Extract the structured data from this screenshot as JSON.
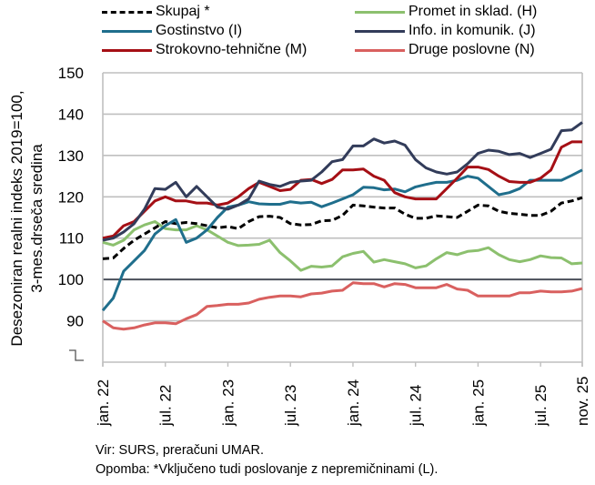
{
  "chart_data": {
    "type": "line",
    "title": "",
    "xlabel": "",
    "ylabel": "Desezoniran realni indeks 2019=100, 3-mes.drseča sredina",
    "ylabel_lines": [
      "Desezoniran realni indeks 2019=100,",
      "3-mes.drseča sredina"
    ],
    "ylim": [
      80,
      150
    ],
    "yticks": [
      90,
      100,
      110,
      120,
      130,
      140,
      150
    ],
    "xtick_labels": [
      "jan. 22",
      "jul. 22",
      "jan. 23",
      "jul. 23",
      "jan. 24",
      "jul. 24",
      "jan. 25",
      "jul. 25",
      "nov. 25"
    ],
    "xtick_index": [
      0,
      6,
      12,
      18,
      24,
      30,
      36,
      42,
      46
    ],
    "x_start": "jan. 22",
    "x_end": "nov. 25",
    "n_points": 47,
    "grid": true,
    "reference_line": 100,
    "axis_break": true,
    "legend_position": "top",
    "series": [
      {
        "name": "Skupaj *",
        "color": "#000000",
        "dash": true,
        "values": [
          105.0,
          105.2,
          107.5,
          109.5,
          111.0,
          112.5,
          114.0,
          113.5,
          113.8,
          113.5,
          113.0,
          112.5,
          112.8,
          112.3,
          114.0,
          115.2,
          115.3,
          115.0,
          113.5,
          113.2,
          113.3,
          114.2,
          114.3,
          115.5,
          118.0,
          117.8,
          117.5,
          117.3,
          117.3,
          115.8,
          114.8,
          114.8,
          115.4,
          115.2,
          115.0,
          116.5,
          118.0,
          117.8,
          116.5,
          116.0,
          115.8,
          115.5,
          115.5,
          116.5,
          118.5,
          119.0,
          119.8
        ]
      },
      {
        "name": "Gostinstvo (I)",
        "color": "#1f6e8c",
        "dash": false,
        "values": [
          92.5,
          95.5,
          102.0,
          104.5,
          107.0,
          111.0,
          113.0,
          114.5,
          109.0,
          110.0,
          112.0,
          115.0,
          117.5,
          118.0,
          118.8,
          118.3,
          118.2,
          118.2,
          118.8,
          118.5,
          118.7,
          117.6,
          118.5,
          119.5,
          120.5,
          122.3,
          122.2,
          121.7,
          121.9,
          121.2,
          122.4,
          123.0,
          123.5,
          123.5,
          124.0,
          125.0,
          124.5,
          122.5,
          120.5,
          121.0,
          122.0,
          124.0,
          124.0,
          124.0,
          124.0,
          125.2,
          126.5
        ]
      },
      {
        "name": "Strokovno-tehnične (M)",
        "color": "#a50f15",
        "dash": false,
        "values": [
          110.0,
          110.5,
          113.0,
          114.0,
          116.5,
          119.0,
          120.0,
          119.0,
          119.0,
          118.5,
          118.5,
          118.0,
          118.5,
          120.0,
          122.0,
          123.5,
          122.5,
          121.5,
          121.8,
          124.0,
          124.2,
          123.2,
          124.2,
          126.5,
          126.5,
          126.7,
          125.0,
          124.0,
          121.0,
          120.0,
          119.5,
          119.5,
          119.5,
          122.0,
          124.5,
          127.2,
          127.2,
          126.6,
          125.0,
          123.7,
          123.5,
          123.5,
          124.5,
          126.5,
          132.0,
          133.3,
          133.3
        ]
      },
      {
        "name": "Promet in sklad. (H)",
        "color": "#8cc06e",
        "dash": false,
        "values": [
          109.0,
          108.3,
          109.5,
          112.0,
          113.2,
          114.0,
          112.3,
          112.0,
          112.0,
          113.0,
          112.0,
          110.5,
          109.0,
          108.2,
          108.3,
          108.5,
          109.5,
          106.5,
          104.5,
          102.2,
          103.2,
          103.0,
          103.3,
          105.5,
          106.3,
          106.8,
          104.2,
          104.8,
          104.3,
          103.8,
          102.8,
          103.3,
          105.0,
          106.5,
          106.0,
          106.8,
          107.0,
          107.7,
          106.0,
          104.8,
          104.3,
          104.8,
          105.7,
          105.3,
          105.2,
          103.8,
          104.0
        ]
      },
      {
        "name": "Info. in komunik. (J)",
        "color": "#323c5a",
        "dash": false,
        "values": [
          109.5,
          110.0,
          111.5,
          113.5,
          117.0,
          122.0,
          121.8,
          123.5,
          120.0,
          122.5,
          120.0,
          117.5,
          117.0,
          118.0,
          119.5,
          123.8,
          123.0,
          122.5,
          123.5,
          123.8,
          124.0,
          126.0,
          128.5,
          129.0,
          132.3,
          132.3,
          134.0,
          133.0,
          133.5,
          132.5,
          129.0,
          127.0,
          126.0,
          125.5,
          126.0,
          128.0,
          130.5,
          131.3,
          131.0,
          130.2,
          130.5,
          129.5,
          130.5,
          131.5,
          136.0,
          136.2,
          138.0
        ]
      },
      {
        "name": "Druge poslovne (N)",
        "color": "#d9605f",
        "dash": false,
        "values": [
          90.0,
          88.3,
          88.0,
          88.3,
          89.0,
          89.5,
          89.5,
          89.3,
          90.5,
          91.5,
          93.5,
          93.7,
          94.0,
          94.0,
          94.3,
          95.2,
          95.7,
          96.0,
          96.0,
          95.8,
          96.5,
          96.7,
          97.2,
          97.4,
          99.2,
          99.0,
          99.0,
          98.2,
          99.0,
          98.8,
          98.0,
          98.0,
          98.0,
          98.8,
          97.7,
          97.4,
          96.0,
          96.0,
          96.0,
          96.0,
          96.8,
          96.8,
          97.2,
          97.0,
          97.0,
          97.2,
          97.8
        ]
      }
    ],
    "legend_order": [
      0,
      3,
      1,
      4,
      2,
      5
    ]
  },
  "notes": {
    "source": "Vir: SURS, preračuni UMAR.",
    "footnote": "Opomba: *Vključeno tudi poslovanje z nepremičninami (L)."
  }
}
